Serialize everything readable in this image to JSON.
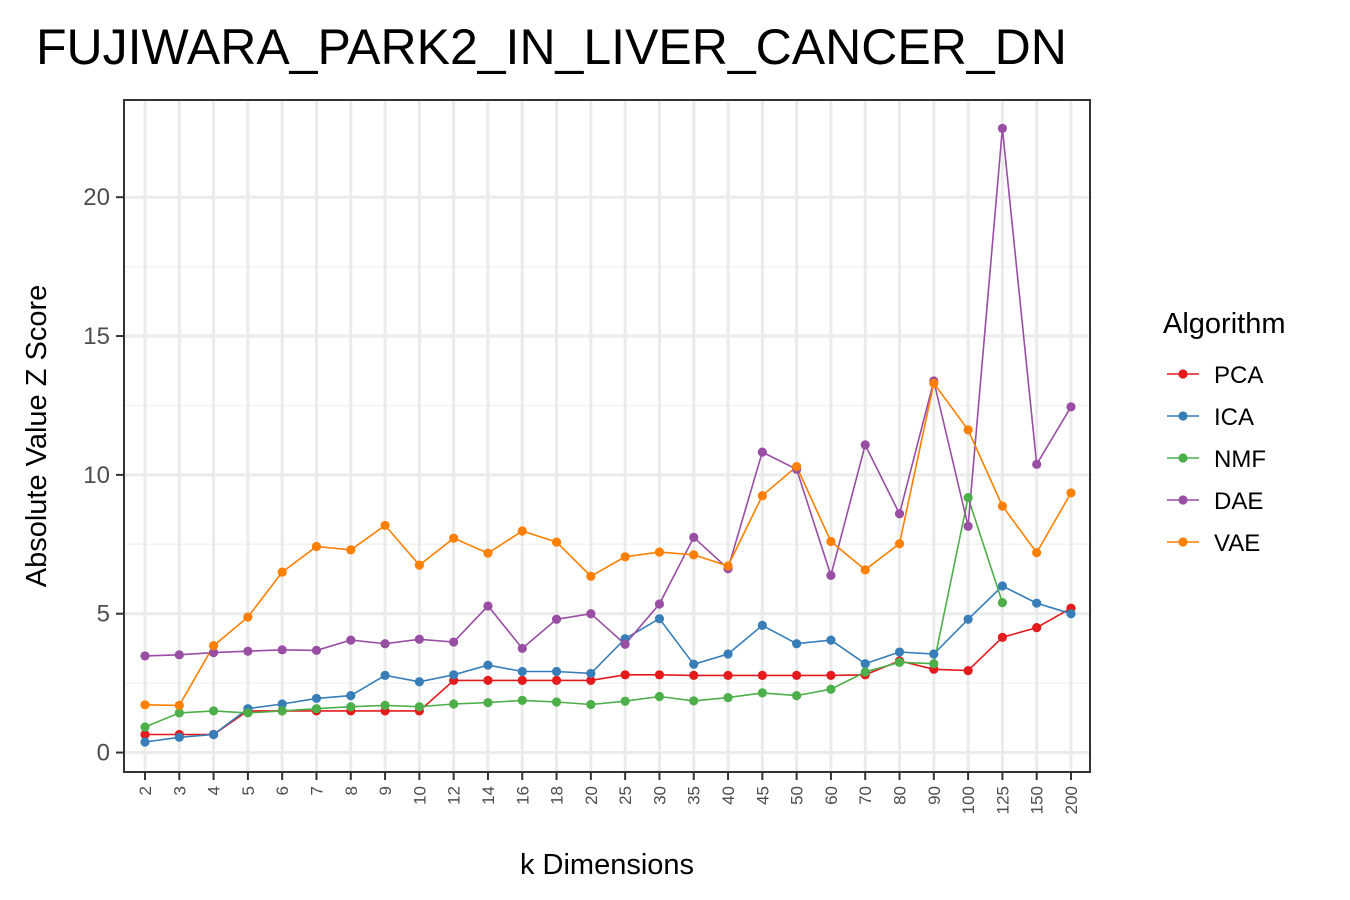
{
  "chart_data": {
    "type": "line",
    "title": "FUJIWARA_PARK2_IN_LIVER_CANCER_DN",
    "xlabel": "k Dimensions",
    "ylabel": "Absolute Value Z Score",
    "ylim": [
      -0.7,
      23.5
    ],
    "yticks": [
      0,
      5,
      10,
      15,
      20
    ],
    "grid": true,
    "legend_title": "Algorithm",
    "legend_position": "right",
    "x": [
      "2",
      "3",
      "4",
      "5",
      "6",
      "7",
      "8",
      "9",
      "10",
      "12",
      "14",
      "16",
      "18",
      "20",
      "25",
      "30",
      "35",
      "40",
      "45",
      "50",
      "60",
      "70",
      "80",
      "90",
      "100",
      "125",
      "150",
      "200"
    ],
    "series": [
      {
        "name": "PCA",
        "color": "#E41A1C",
        "values": [
          0.65,
          0.65,
          0.65,
          1.5,
          1.5,
          1.5,
          1.5,
          1.5,
          1.5,
          2.6,
          2.6,
          2.6,
          2.6,
          2.6,
          2.8,
          2.8,
          2.78,
          2.78,
          2.78,
          2.78,
          2.78,
          2.8,
          3.3,
          3.0,
          2.95,
          4.15,
          4.5,
          5.2
        ]
      },
      {
        "name": "ICA",
        "color": "#377EB8",
        "values": [
          0.38,
          0.55,
          0.65,
          1.58,
          1.75,
          1.95,
          2.05,
          2.78,
          2.55,
          2.8,
          3.15,
          2.92,
          2.92,
          2.85,
          4.1,
          4.82,
          3.18,
          3.55,
          4.58,
          3.92,
          4.05,
          3.2,
          3.62,
          3.55,
          4.8,
          6.0,
          5.38,
          5.0
        ]
      },
      {
        "name": "NMF",
        "color": "#4DAF4A",
        "values": [
          0.92,
          1.43,
          1.5,
          1.43,
          1.5,
          1.58,
          1.65,
          1.7,
          1.65,
          1.75,
          1.8,
          1.88,
          1.82,
          1.73,
          1.85,
          2.02,
          1.86,
          1.98,
          2.15,
          2.05,
          2.28,
          2.9,
          3.25,
          3.2,
          9.18,
          5.4,
          null,
          null
        ]
      },
      {
        "name": "DAE",
        "color": "#984EA3",
        "values": [
          3.48,
          3.52,
          3.6,
          3.65,
          3.7,
          3.68,
          4.05,
          3.92,
          4.08,
          3.98,
          5.28,
          3.75,
          4.8,
          5.0,
          3.9,
          5.35,
          7.75,
          6.62,
          10.82,
          10.2,
          6.38,
          11.08,
          8.6,
          13.38,
          8.15,
          22.48,
          10.38,
          12.45
        ]
      },
      {
        "name": "VAE",
        "color": "#FF7F00",
        "values": [
          1.72,
          1.7,
          3.85,
          4.88,
          6.5,
          7.42,
          7.3,
          8.18,
          6.75,
          7.72,
          7.18,
          7.98,
          7.58,
          6.35,
          7.05,
          7.22,
          7.12,
          6.72,
          9.25,
          10.3,
          7.6,
          6.58,
          7.52,
          13.3,
          11.62,
          8.88,
          7.2,
          9.35
        ]
      }
    ]
  }
}
